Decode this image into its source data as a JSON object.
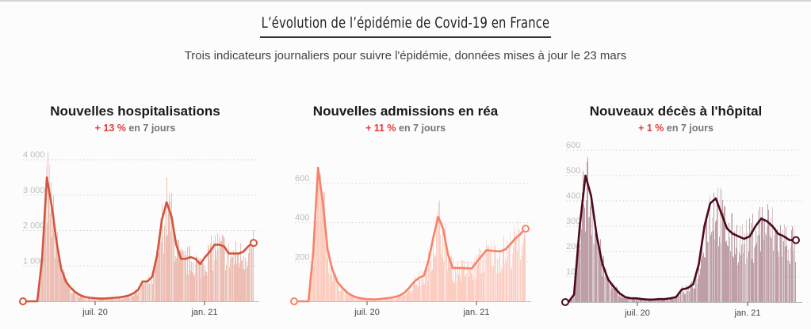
{
  "header": {
    "title": "L’évolution de l’épidémie de Covid-19 en France",
    "subtitle": "Trois indicateurs journaliers pour suivre l'épidémie, données mises à jour le 23 mars"
  },
  "chart_data": [
    {
      "type": "bar",
      "title": "Nouvelles hospitalisations",
      "change_pct": "+ 13 %",
      "change_label": "en 7 jours",
      "color_bars": "#ebbbb0",
      "color_line": "#d2553f",
      "yticks": [
        1000,
        2000,
        3000,
        4000
      ],
      "ytick_labels": [
        "1 000",
        "2 000",
        "3 000",
        "4 000"
      ],
      "ylim": [
        0,
        4000
      ],
      "xticks": [
        "juil. 20",
        "jan. 21"
      ],
      "x_range": [
        "2020-03-01",
        "2021-03-22"
      ],
      "smoothed_weekly": [
        0,
        0,
        1200,
        3500,
        2700,
        1700,
        900,
        550,
        380,
        250,
        170,
        120,
        100,
        90,
        80,
        80,
        90,
        100,
        110,
        130,
        160,
        220,
        320,
        560,
        560,
        700,
        1300,
        2300,
        2800,
        2400,
        1600,
        1200,
        1200,
        1250,
        1200,
        1050,
        1250,
        1400,
        1600,
        1600,
        1550,
        1350,
        1350,
        1350,
        1400,
        1550,
        1650
      ],
      "last_value": 1650
    },
    {
      "type": "bar",
      "title": "Nouvelles admissions en réa",
      "change_pct": "+ 11 %",
      "change_label": "en 7 jours",
      "color_bars": "#fccbbf",
      "color_line": "#f6836a",
      "yticks": [
        200,
        400,
        600
      ],
      "ytick_labels": [
        "200",
        "400",
        "600"
      ],
      "ylim": [
        0,
        600
      ],
      "xticks": [
        "juil. 20",
        "jan. 21"
      ],
      "x_range": [
        "2020-03-01",
        "2021-03-22"
      ],
      "smoothed_weekly": [
        0,
        0,
        250,
        680,
        500,
        260,
        160,
        100,
        70,
        45,
        30,
        20,
        15,
        12,
        10,
        10,
        12,
        15,
        18,
        22,
        30,
        45,
        70,
        100,
        120,
        130,
        210,
        330,
        430,
        370,
        240,
        170,
        170,
        170,
        168,
        168,
        200,
        230,
        260,
        258,
        255,
        255,
        265,
        290,
        320,
        340,
        370
      ],
      "last_value": 370
    },
    {
      "type": "bar",
      "title": "Nouveaux décès à l'hôpital",
      "change_pct": "+ 1 %",
      "change_label": "en 7 jours",
      "color_bars": "#b99aa0",
      "color_line": "#4d0a1b",
      "yticks": [
        100,
        200,
        300,
        400,
        500,
        600
      ],
      "ytick_labels": [
        "100",
        "200",
        "300",
        "400",
        "500",
        "600"
      ],
      "ylim": [
        0,
        600
      ],
      "xticks": [
        "juil. 20",
        "jan. 21"
      ],
      "x_range": [
        "2020-03-01",
        "2021-03-22"
      ],
      "smoothed_weekly": [
        0,
        30,
        300,
        500,
        420,
        260,
        150,
        90,
        60,
        35,
        20,
        15,
        15,
        12,
        10,
        10,
        12,
        12,
        15,
        20,
        50,
        55,
        70,
        150,
        300,
        390,
        410,
        350,
        290,
        270,
        260,
        250,
        260,
        300,
        330,
        320,
        300,
        270,
        260,
        245,
        245
      ],
      "last_value": 245
    }
  ]
}
